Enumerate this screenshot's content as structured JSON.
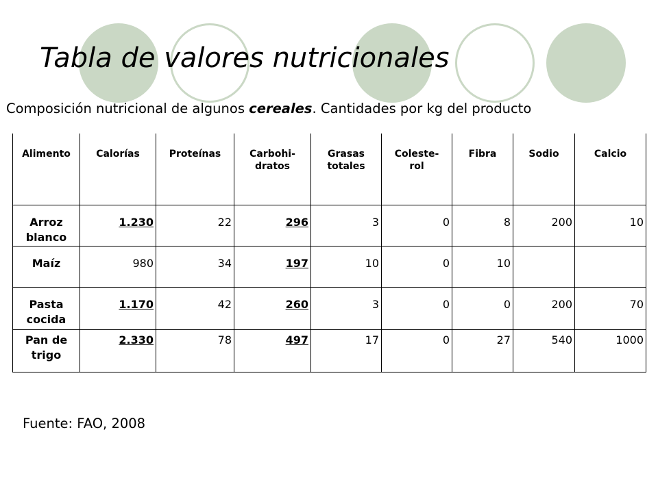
{
  "title": "Tabla de valores nutricionales",
  "subtitle": {
    "before": "Composición nutricional de algunos ",
    "emphasis": "cereales",
    "after": ". Cantidades por kg del producto"
  },
  "table": {
    "headers": [
      "Alimento",
      "Calorías",
      "Proteínas",
      "Carbohi-\ndratos",
      "Grasas\ntotales",
      "Coleste-\nrol",
      "Fibra",
      "Sodio",
      "Calcio"
    ],
    "rows": [
      {
        "label": "Arroz blanco",
        "values": [
          "1.230",
          "22",
          "296",
          "3",
          "0",
          "8",
          "200",
          "10"
        ]
      },
      {
        "label": "Maíz",
        "values": [
          "980",
          "34",
          "197",
          "10",
          "0",
          "10",
          "",
          ""
        ]
      },
      {
        "label": "Pasta cocida",
        "values": [
          "1.170",
          "42",
          "260",
          "3",
          "0",
          "0",
          "200",
          "70"
        ]
      },
      {
        "label": "Pan de trigo",
        "values": [
          "2.330",
          "78",
          "497",
          "17",
          "0",
          "27",
          "540",
          "1000"
        ]
      }
    ]
  },
  "source": "Fuente: FAO, 2008",
  "colors": {
    "decor_green": "#cad8c5"
  }
}
